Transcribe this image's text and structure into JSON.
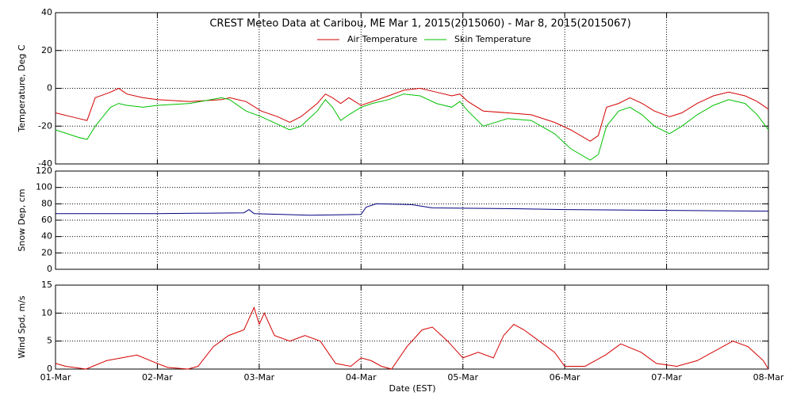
{
  "chart_data": [
    {
      "type": "line",
      "title": "CREST Meteo Data at Caribou, ME   Mar  1, 2015(2015060) - Mar  8, 2015(2015067)",
      "y_label": "Temperature, Deg C",
      "x": [
        0,
        0.23,
        0.31,
        0.39,
        0.54,
        0.62,
        0.7,
        0.86,
        1.0,
        1.32,
        1.63,
        1.71,
        1.87,
        2.02,
        2.18,
        2.3,
        2.41,
        2.57,
        2.65,
        2.72,
        2.8,
        2.88,
        3.0,
        3.11,
        3.27,
        3.42,
        3.58,
        3.74,
        3.89,
        3.97,
        4.05,
        4.2,
        4.44,
        4.67,
        4.9,
        5.06,
        5.25,
        5.33,
        5.41,
        5.53,
        5.64,
        5.76,
        5.88,
        6.03,
        6.15,
        6.3,
        6.46,
        6.61,
        6.77,
        6.89,
        7.0
      ],
      "series": [
        {
          "name": "Air Temperature",
          "color": "#d40000",
          "values": [
            -13,
            -16,
            -17,
            -5,
            -2,
            0,
            -3,
            -5,
            -6,
            -7,
            -6,
            -5,
            -7,
            -12,
            -15,
            -18,
            -15,
            -8,
            -3,
            -5,
            -8,
            -5,
            -9,
            -7,
            -4,
            -1,
            0,
            -2,
            -4,
            -3,
            -7,
            -12,
            -13,
            -14,
            -18,
            -22,
            -28,
            -25,
            -10,
            -8,
            -5,
            -8,
            -12,
            -15,
            -13,
            -8,
            -4,
            -2,
            -4,
            -7,
            -11
          ]
        },
        {
          "name": "Skin Temperature",
          "color": "#00c000",
          "values": [
            -22,
            -26,
            -27,
            -20,
            -10,
            -8,
            -9,
            -10,
            -9,
            -8,
            -5,
            -6,
            -12,
            -15,
            -19,
            -22,
            -20,
            -12,
            -6,
            -10,
            -17,
            -14,
            -10,
            -8,
            -6,
            -3,
            -4,
            -8,
            -10,
            -7,
            -12,
            -20,
            -16,
            -17,
            -24,
            -32,
            -38,
            -35,
            -20,
            -12,
            -10,
            -14,
            -20,
            -24,
            -20,
            -14,
            -9,
            -6,
            -8,
            -14,
            -22
          ]
        }
      ],
      "xlim": [
        0,
        7
      ],
      "xticks": [
        0,
        1,
        2,
        3,
        4,
        5,
        6,
        7
      ],
      "ylim": [
        -40,
        40
      ],
      "yticks": [
        -40,
        -20,
        0,
        20,
        40
      ],
      "grid": true,
      "legend": "top"
    },
    {
      "type": "line",
      "y_label": "Snow Dep, cm",
      "x": [
        0,
        1,
        1.85,
        1.9,
        1.95,
        2.5,
        3.0,
        3.05,
        3.15,
        3.5,
        3.7,
        4.5,
        5.0,
        6.0,
        7.0
      ],
      "series": [
        {
          "color": "#000080",
          "values": [
            68,
            68,
            69,
            73,
            68,
            66,
            67,
            76,
            80,
            79,
            75,
            74,
            73,
            72,
            71
          ]
        }
      ],
      "xlim": [
        0,
        7
      ],
      "xticks": [
        0,
        1,
        2,
        3,
        4,
        5,
        6,
        7
      ],
      "ylim": [
        0,
        120
      ],
      "yticks": [
        0,
        20,
        40,
        60,
        80,
        100,
        120
      ],
      "grid": true
    },
    {
      "type": "line",
      "y_label": "Wind Spd, m/s",
      "x_label": "Date (EST)",
      "x": [
        0,
        0.1,
        0.3,
        0.5,
        0.8,
        1.0,
        1.1,
        1.3,
        1.4,
        1.55,
        1.7,
        1.85,
        1.9,
        1.95,
        2.0,
        2.05,
        2.15,
        2.3,
        2.45,
        2.6,
        2.75,
        2.9,
        3.0,
        3.1,
        3.2,
        3.3,
        3.45,
        3.6,
        3.7,
        3.85,
        4.0,
        4.15,
        4.3,
        4.4,
        4.5,
        4.6,
        4.75,
        4.9,
        5.0,
        5.2,
        5.4,
        5.55,
        5.75,
        5.9,
        6.1,
        6.3,
        6.5,
        6.65,
        6.8,
        6.95,
        7.0
      ],
      "series": [
        {
          "color": "#d40000",
          "values": [
            1,
            0.5,
            0,
            1.5,
            2.5,
            1,
            0.3,
            0,
            0.5,
            4,
            6,
            7,
            9,
            11,
            8,
            10,
            6,
            5,
            6,
            5,
            1,
            0.5,
            2,
            1.5,
            0.5,
            0,
            4,
            7,
            7.5,
            5,
            2,
            3,
            2,
            6,
            8,
            7,
            5,
            3,
            0.5,
            0.5,
            2.5,
            4.5,
            3,
            1,
            0.5,
            1.5,
            3.5,
            5,
            4,
            1.5,
            0
          ]
        }
      ],
      "xlim": [
        0,
        7
      ],
      "xticks": [
        {
          "value": 0,
          "label": "01-Mar"
        },
        {
          "value": 1,
          "label": "02-Mar"
        },
        {
          "value": 2,
          "label": "03-Mar"
        },
        {
          "value": 3,
          "label": "04-Mar"
        },
        {
          "value": 4,
          "label": "05-Mar"
        },
        {
          "value": 5,
          "label": "06-Mar"
        },
        {
          "value": 6,
          "label": "07-Mar"
        },
        {
          "value": 7,
          "label": "08-Mar"
        }
      ],
      "ylim": [
        0,
        15
      ],
      "yticks": [
        0,
        5,
        10,
        15
      ],
      "grid": true
    }
  ]
}
